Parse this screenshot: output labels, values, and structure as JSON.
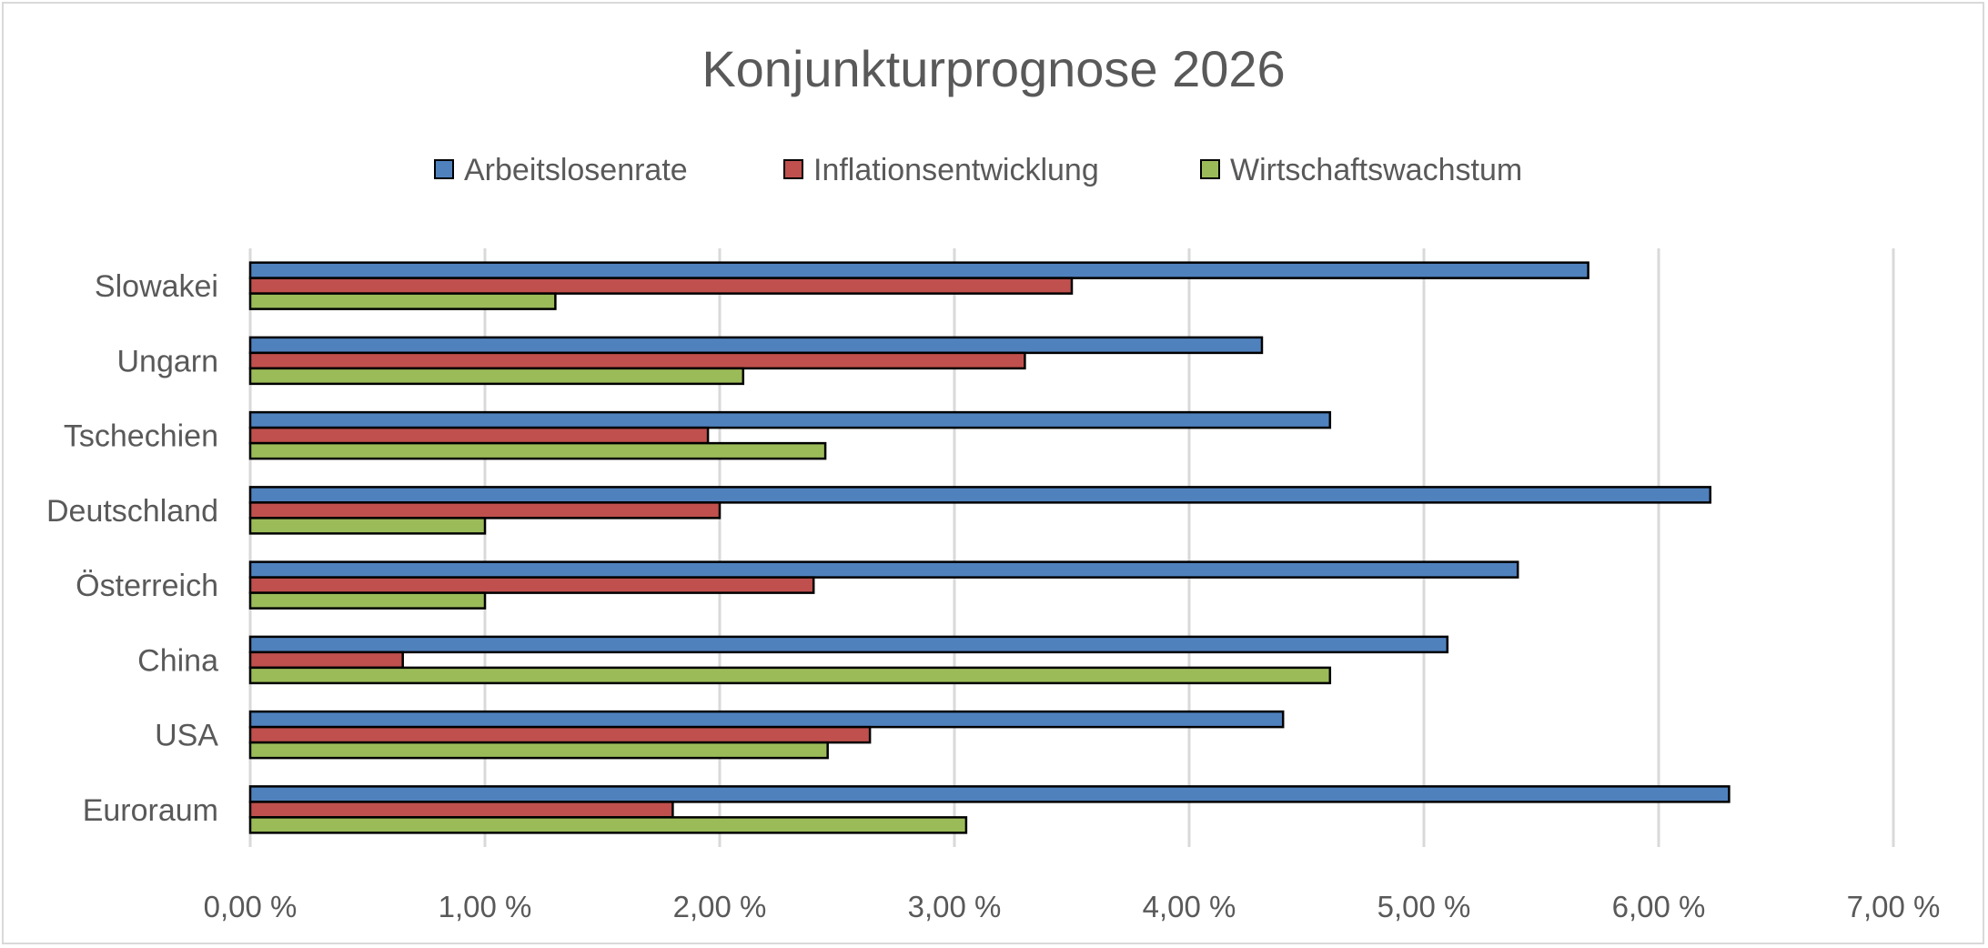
{
  "chart_data": {
    "type": "bar",
    "orientation": "horizontal",
    "title": "Konjunkturprognose 2026",
    "xlabel": "",
    "ylabel": "",
    "categories": [
      "Slowakei",
      "Ungarn",
      "Tschechien",
      "Deutschland",
      "Österreich",
      "China",
      "USA",
      "Euroraum"
    ],
    "series": [
      {
        "name": "Arbeitslosenrate",
        "color": "#4F81BD",
        "values": [
          5.7,
          4.31,
          4.6,
          6.22,
          5.4,
          5.1,
          4.4,
          6.3
        ]
      },
      {
        "name": "Inflationsentwicklung",
        "color": "#C0504D",
        "values": [
          3.5,
          3.3,
          1.95,
          2.0,
          2.4,
          0.65,
          2.64,
          1.8
        ]
      },
      {
        "name": "Wirtschaftswachstum",
        "color": "#9BBB59",
        "values": [
          1.3,
          2.1,
          2.45,
          1.0,
          1.0,
          4.6,
          2.46,
          3.05
        ]
      }
    ],
    "xlim": [
      0,
      7
    ],
    "x_ticks": [
      "0,00 %",
      "1,00 %",
      "2,00 %",
      "3,00 %",
      "4,00 %",
      "5,00 %",
      "6,00 %",
      "7,00 %"
    ],
    "unit": "%",
    "grid": "vertical",
    "legend": "top"
  }
}
